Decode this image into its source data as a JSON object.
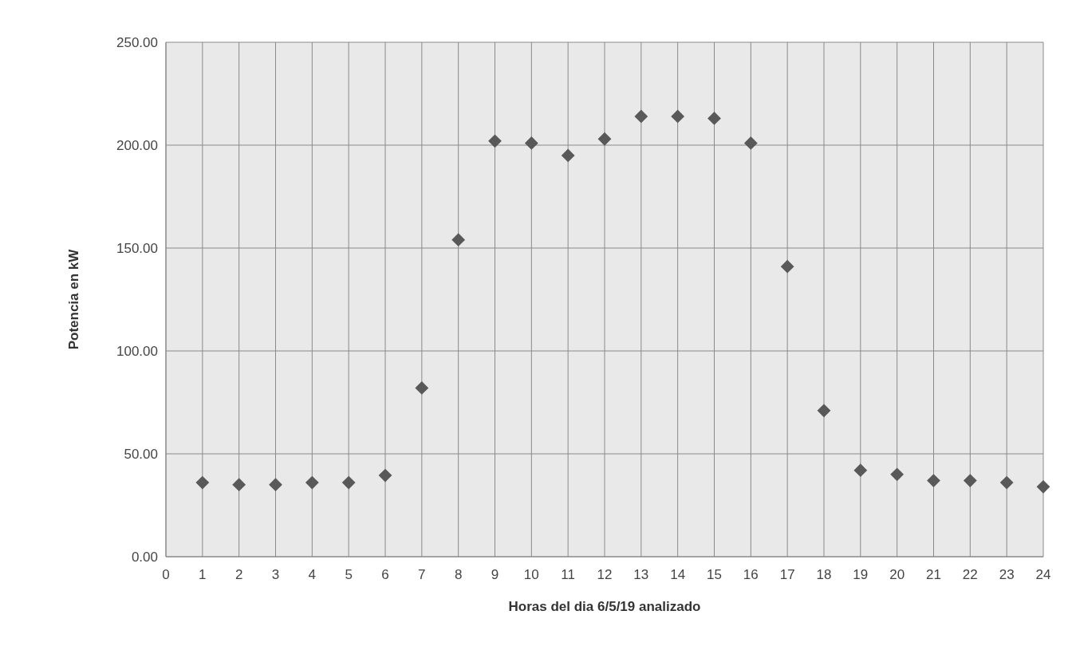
{
  "chart_data": {
    "type": "scatter",
    "xlabel": "Horas del dia 6/5/19 analizado",
    "ylabel": "Potencia en kW",
    "x": [
      1,
      2,
      3,
      4,
      5,
      6,
      7,
      8,
      9,
      10,
      11,
      12,
      13,
      14,
      15,
      16,
      17,
      18,
      19,
      20,
      21,
      22,
      23,
      24
    ],
    "series": [
      {
        "color": "#595959",
        "values": [
          36,
          35,
          35,
          36,
          36,
          39.5,
          82,
          154,
          202,
          201,
          195,
          203,
          214,
          214,
          213,
          201,
          141,
          71,
          42,
          40,
          37,
          37,
          36,
          34
        ]
      }
    ],
    "xlim": [
      0,
      24
    ],
    "xticks": [
      0,
      1,
      2,
      3,
      4,
      5,
      6,
      7,
      8,
      9,
      10,
      11,
      12,
      13,
      14,
      15,
      16,
      17,
      18,
      19,
      20,
      21,
      22,
      23,
      24
    ],
    "ylim": [
      0,
      250
    ],
    "yticks": [
      {
        "value": 0,
        "label": "0.00"
      },
      {
        "value": 50,
        "label": "50.00"
      },
      {
        "value": 100,
        "label": "100.00"
      },
      {
        "value": 150,
        "label": "150.00"
      },
      {
        "value": 200,
        "label": "200.00"
      },
      {
        "value": 250,
        "label": "250.00"
      }
    ],
    "grid": true,
    "marker": "diamond"
  }
}
